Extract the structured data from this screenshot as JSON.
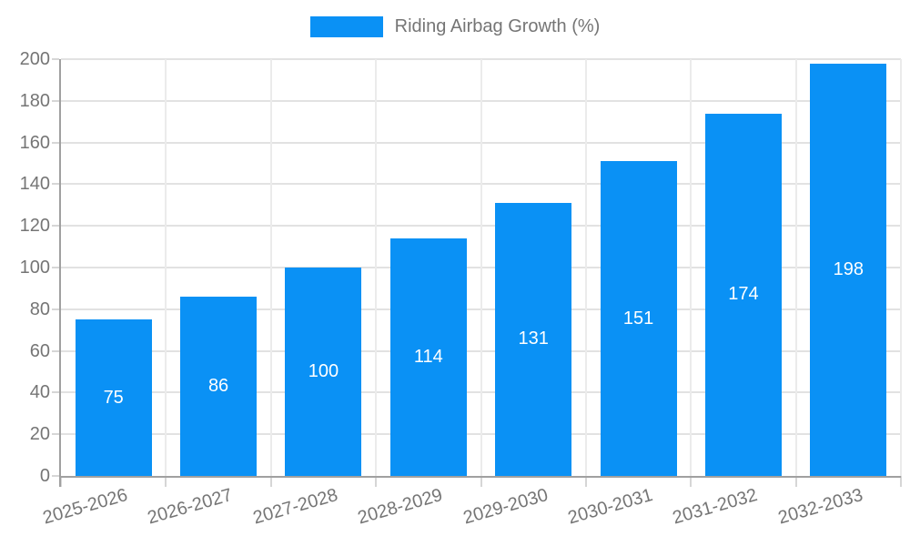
{
  "legend": {
    "label": "Riding Airbag Growth (%)"
  },
  "chart_data": {
    "type": "bar",
    "title": "",
    "legend": "Riding Airbag Growth (%)",
    "legend_position": "top-center",
    "categories": [
      "2025-2026",
      "2026-2027",
      "2027-2028",
      "2028-2029",
      "2029-2030",
      "2030-2031",
      "2031-2032",
      "2032-2033"
    ],
    "values": [
      75,
      86,
      100,
      114,
      131,
      151,
      174,
      198
    ],
    "xlabel": "",
    "ylabel": "",
    "ylim": [
      0,
      200
    ],
    "yticks": [
      0,
      20,
      40,
      60,
      80,
      100,
      120,
      140,
      160,
      180,
      200
    ],
    "grid": true,
    "value_label_position": "inside-center",
    "xtick_rotation_deg": -16,
    "colors": {
      "bar": "#0A91F5",
      "axis_text": "#757575",
      "axis_line": "#A0A0A0",
      "grid_h": "#E2E2E2",
      "grid_v": "#EBEBEB",
      "tick": "#D6D6D6",
      "value_label": "#FFFFFF",
      "background": "#FFFFFF"
    }
  }
}
